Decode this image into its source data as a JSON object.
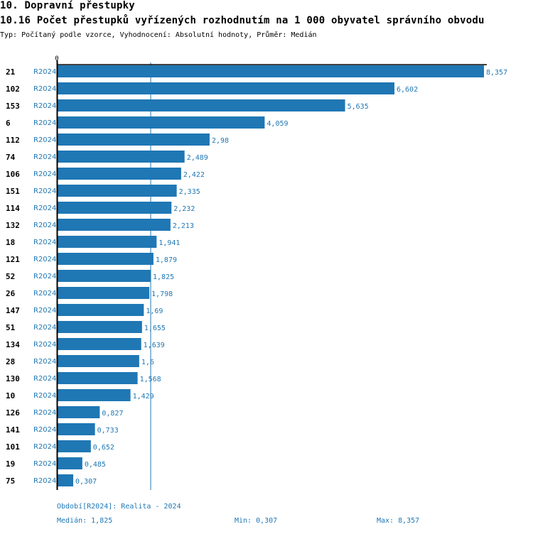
{
  "header": {
    "section_title": "10. Dopravní přestupky",
    "chart_title": "10.16 Počet přestupků vyřízených rozhodnutím na 1 000 obyvatel správního obvodu",
    "subtitle": "Typ: Počítaný podle vzorce, Vyhodnocení: Absolutní hodnoty, Průměr: Medián"
  },
  "colors": {
    "bar": "#1f77b4",
    "axis": "#000000",
    "label": "#1f77b4",
    "median_line": "#1f77b4"
  },
  "chart_data": {
    "type": "bar",
    "orientation": "horizontal",
    "title": "10.16 Počet přestupků vyřízených rozhodnutím na 1 000 obyvatel správního obvodu",
    "x_tick_labels": [
      "0"
    ],
    "xlim": [
      0,
      8.357
    ],
    "median": 1.825,
    "median_label": "Medián: 1,825",
    "period_code": "R2024",
    "categories": [
      "21",
      "102",
      "153",
      "6",
      "112",
      "74",
      "106",
      "151",
      "114",
      "132",
      "18",
      "121",
      "52",
      "26",
      "147",
      "51",
      "134",
      "28",
      "130",
      "10",
      "126",
      "141",
      "101",
      "19",
      "75"
    ],
    "series": [
      {
        "name": "R2024",
        "values": [
          8.357,
          6.602,
          5.635,
          4.059,
          2.98,
          2.489,
          2.422,
          2.335,
          2.232,
          2.213,
          1.941,
          1.879,
          1.825,
          1.798,
          1.69,
          1.655,
          1.639,
          1.6,
          1.568,
          1.429,
          0.827,
          0.733,
          0.652,
          0.485,
          0.307
        ],
        "value_labels": [
          "8,357",
          "6,602",
          "5,635",
          "4,059",
          "2,98",
          "2,489",
          "2,422",
          "2,335",
          "2,232",
          "2,213",
          "1,941",
          "1,879",
          "1,825",
          "1,798",
          "1,69",
          "1,655",
          "1,639",
          "1,6",
          "1,568",
          "1,429",
          "0,827",
          "0,733",
          "0,652",
          "0,485",
          "0,307"
        ]
      }
    ],
    "legend": "none"
  },
  "footer": {
    "period": "Období[R2024]: Realita - 2024",
    "median": "Medián: 1,825",
    "min": "Min: 0,307",
    "max": "Max: 8,357"
  }
}
